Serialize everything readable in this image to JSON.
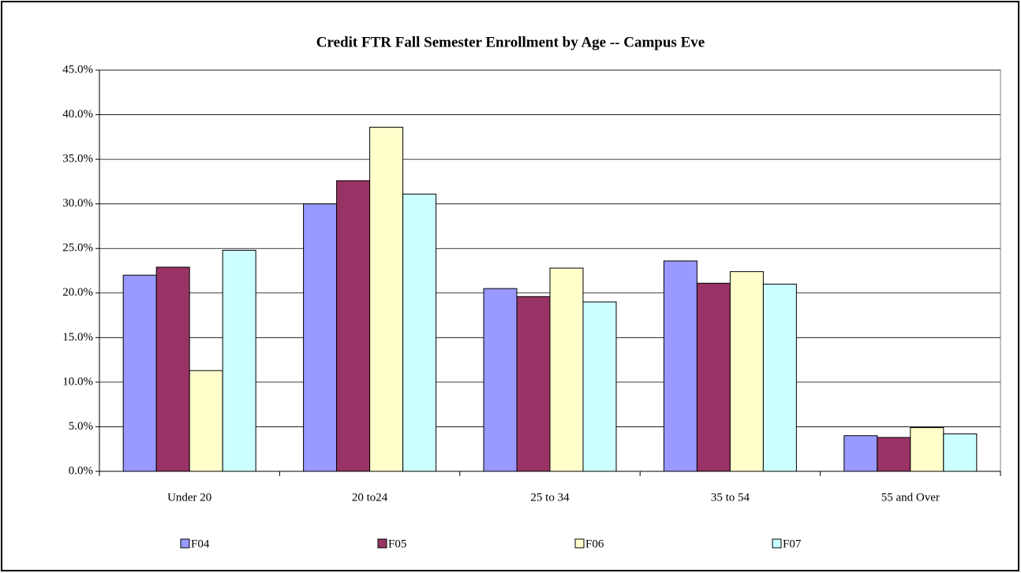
{
  "chart_data": {
    "type": "bar",
    "title": "Credit FTR Fall Semester Enrollment by Age -- Campus Eve",
    "categories": [
      "Under 20",
      "20 to24",
      "25 to 34",
      "35 to 54",
      "55 and Over"
    ],
    "series": [
      {
        "name": "F04",
        "color": "#9999ff",
        "values": [
          22.0,
          30.0,
          20.5,
          23.6,
          4.0
        ]
      },
      {
        "name": "F05",
        "color": "#993366",
        "values": [
          22.9,
          32.6,
          19.6,
          21.1,
          3.8
        ]
      },
      {
        "name": "F06",
        "color": "#ffffcc",
        "values": [
          11.3,
          38.6,
          22.8,
          22.4,
          4.9
        ]
      },
      {
        "name": "F07",
        "color": "#ccffff",
        "values": [
          24.8,
          31.1,
          19.0,
          21.0,
          4.2
        ]
      }
    ],
    "ylim": [
      0,
      45
    ],
    "yticks": [
      {
        "value": 0,
        "label": "0.0%"
      },
      {
        "value": 5,
        "label": "5.0%"
      },
      {
        "value": 10,
        "label": "10.0%"
      },
      {
        "value": 15,
        "label": "15.0%"
      },
      {
        "value": 20,
        "label": "20.0%"
      },
      {
        "value": 25,
        "label": "25.0%"
      },
      {
        "value": 30,
        "label": "30.0%"
      },
      {
        "value": 35,
        "label": "35.0%"
      },
      {
        "value": 40,
        "label": "40.0%"
      },
      {
        "value": 45,
        "label": "45.0%"
      }
    ],
    "grid": true,
    "legend": "bottom"
  }
}
